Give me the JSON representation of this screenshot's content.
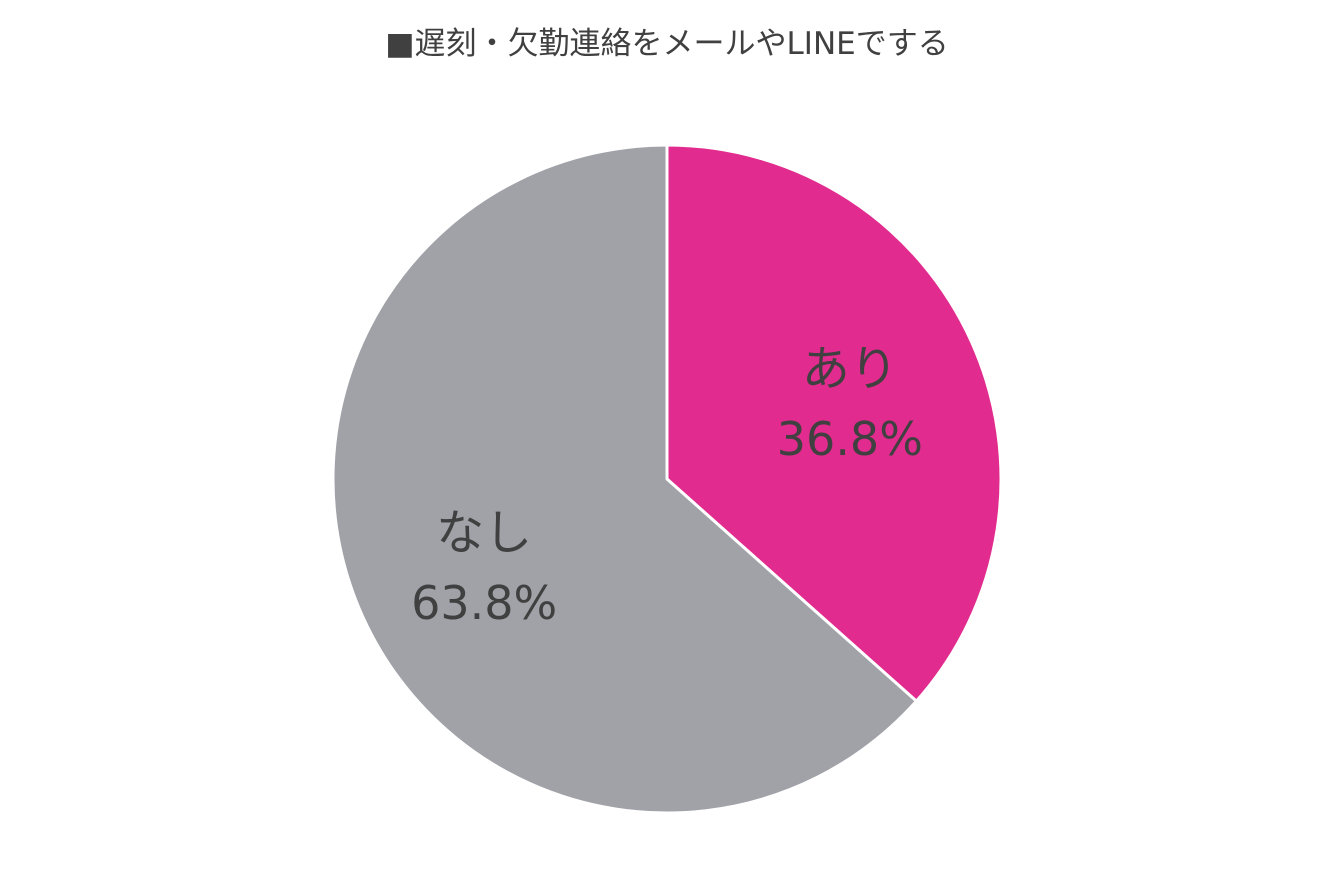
{
  "chart_data": {
    "type": "pie",
    "title": "■遅刻・欠勤連絡をメールやLINEでする",
    "slices": [
      {
        "label": "あり",
        "value": 36.8,
        "value_label": "36.8%",
        "color": "#e22b8e"
      },
      {
        "label": "なし",
        "value": 63.8,
        "value_label": "63.8%",
        "color": "#a0a2a8"
      }
    ],
    "start_angle": "12-o'clock",
    "direction": "clockwise",
    "legend": "none",
    "data_labels": "inside"
  }
}
